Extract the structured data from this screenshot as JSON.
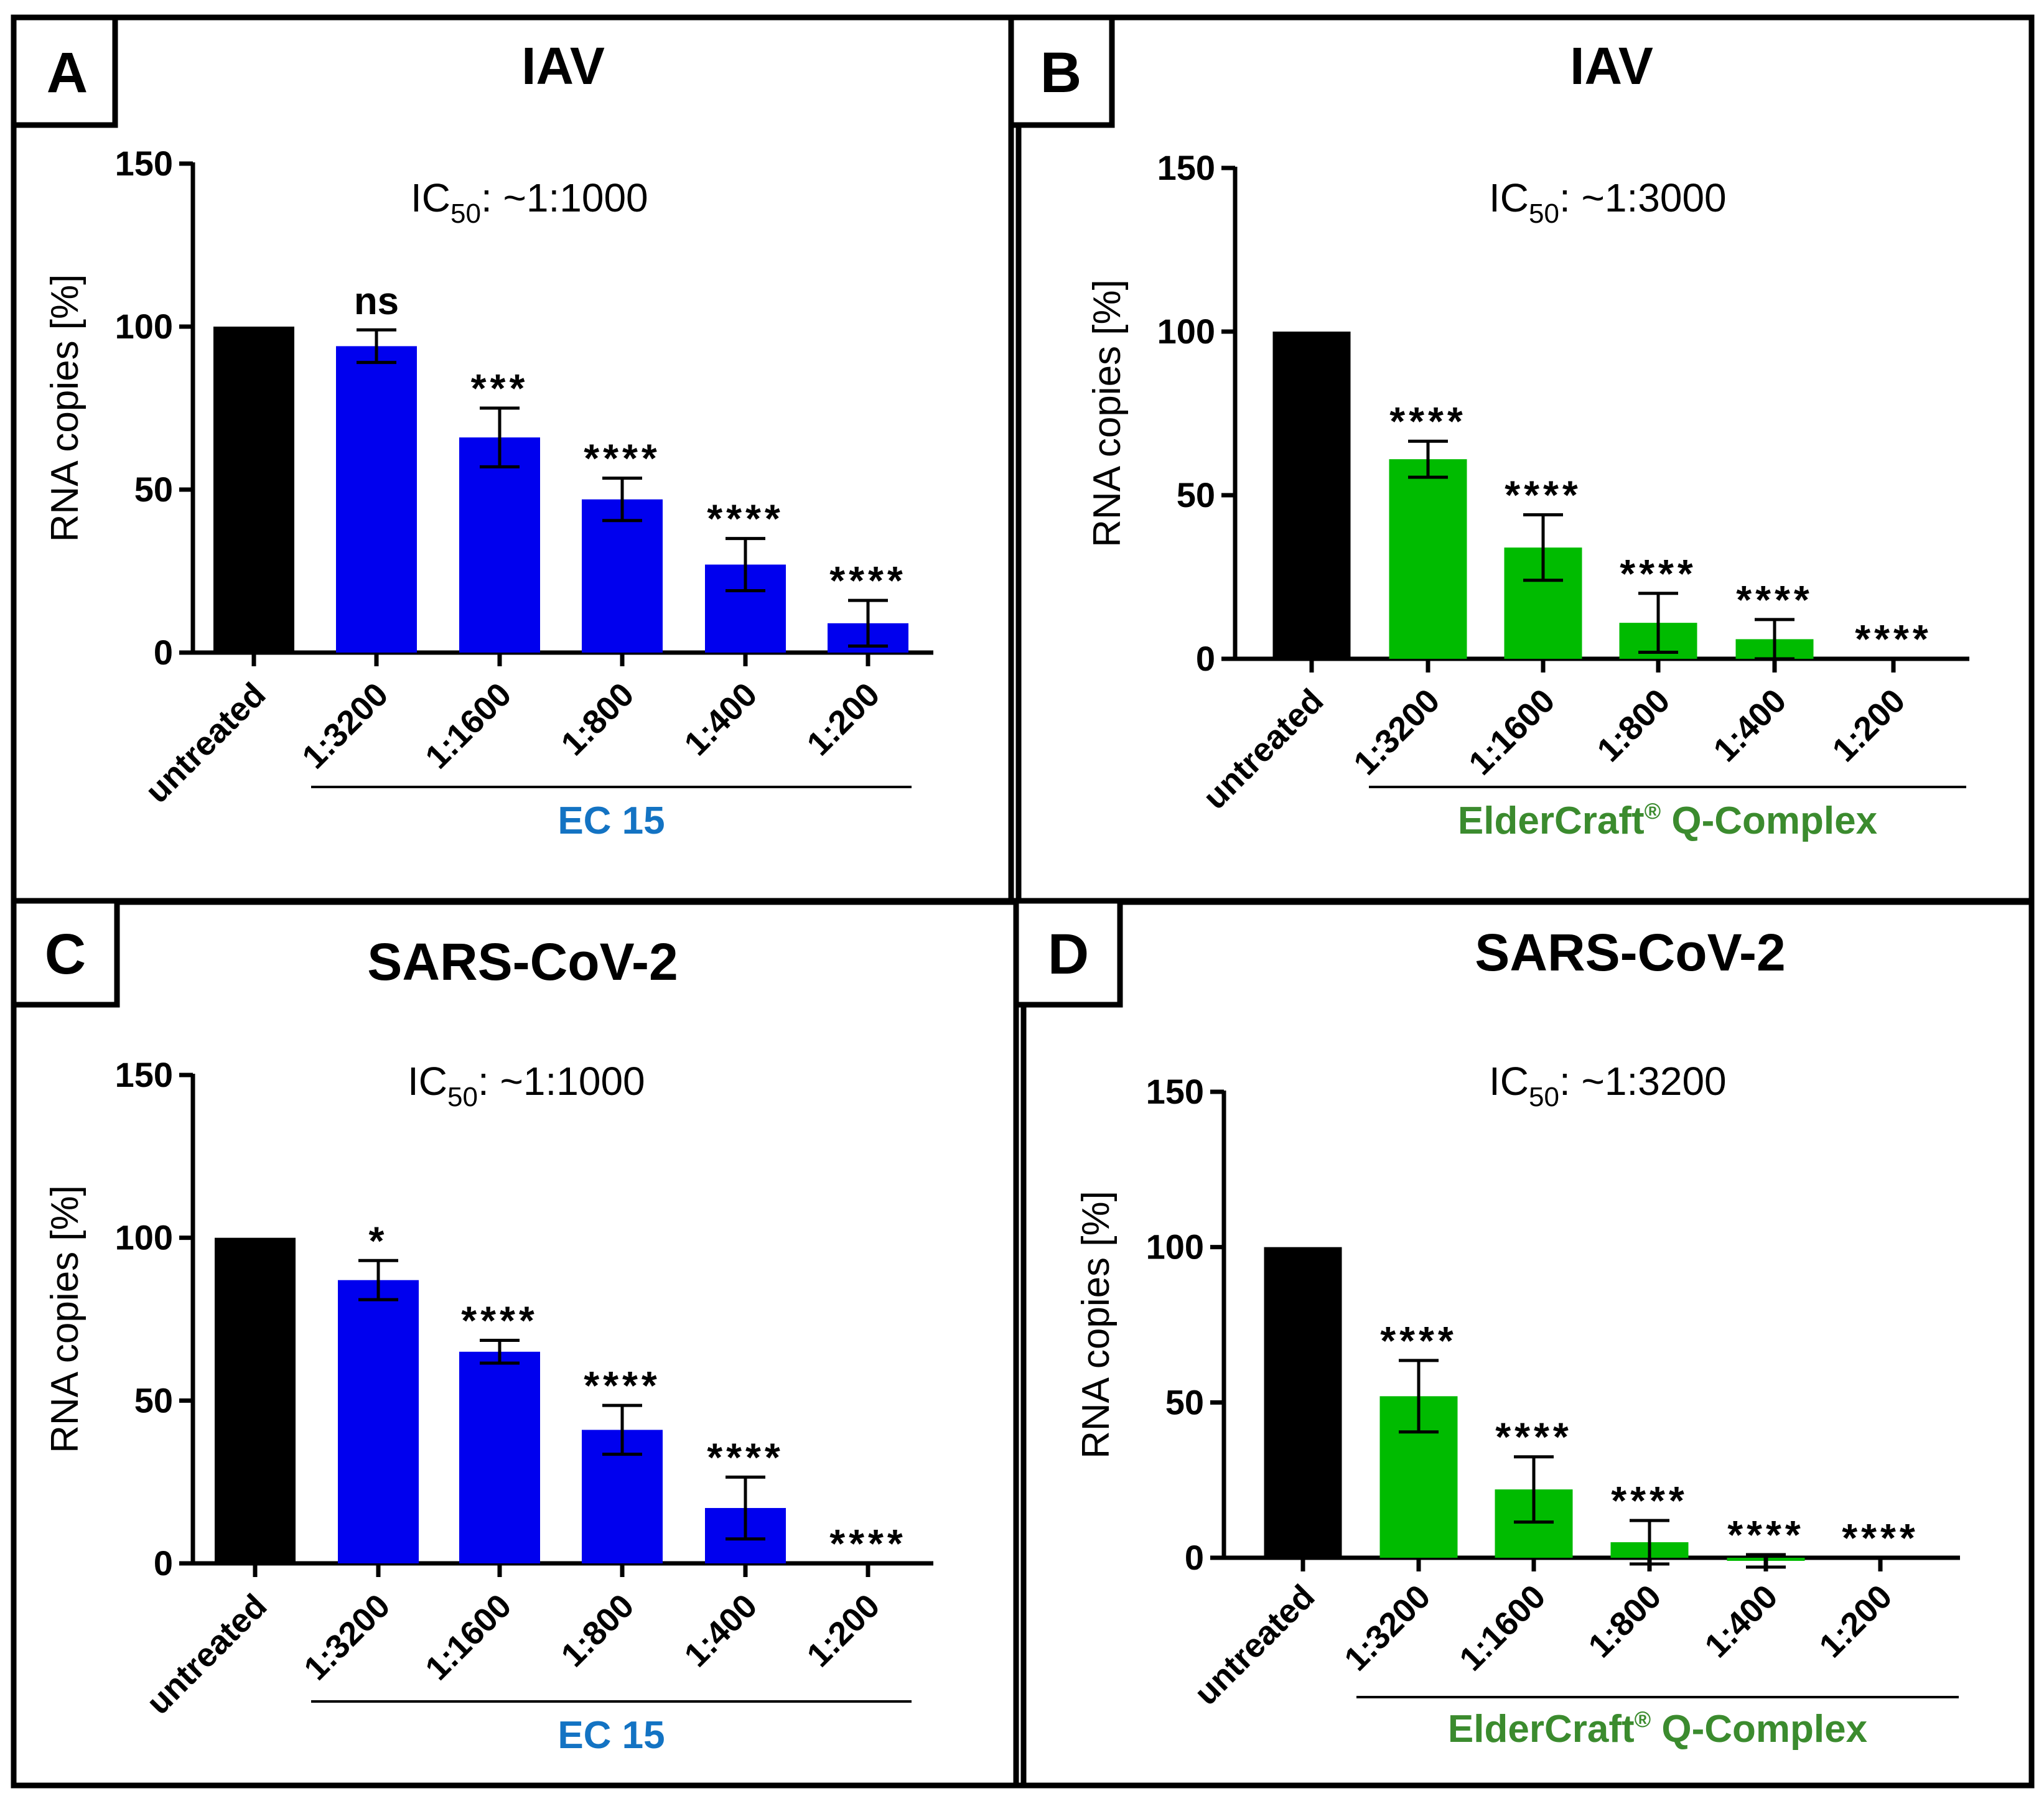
{
  "chart_data": [
    {
      "panel": "A",
      "type": "bar",
      "title": "IAV",
      "ic50_prefix": "IC",
      "ic50_sub": "50",
      "ic50_value": ": ~1:1000",
      "ylabel": "RNA copies [%]",
      "xlabel": "",
      "ylim": [
        0,
        150
      ],
      "yticks": [
        0,
        50,
        100,
        150
      ],
      "categories": [
        "untreated",
        "1:3200",
        "1:1600",
        "1:800",
        "1:400",
        "1:200"
      ],
      "values": [
        100,
        94,
        66,
        47,
        27,
        9
      ],
      "errors": [
        0,
        5,
        9,
        6.5,
        8,
        7
      ],
      "significance": [
        "",
        "ns",
        "***",
        "****",
        "****",
        "****"
      ],
      "group_label": "EC 15",
      "group_label_color": "#1373c3",
      "bar_colors": [
        "#000000",
        "#0000ee",
        "#0000ee",
        "#0000ee",
        "#0000ee",
        "#0000ee"
      ]
    },
    {
      "panel": "B",
      "type": "bar",
      "title": "IAV",
      "ic50_prefix": "IC",
      "ic50_sub": "50",
      "ic50_value": ": ~1:3000",
      "ylabel": "RNA copies [%]",
      "xlabel": "",
      "ylim": [
        0,
        150
      ],
      "yticks": [
        0,
        50,
        100,
        150
      ],
      "categories": [
        "untreated",
        "1:3200",
        "1:1600",
        "1:800",
        "1:400",
        "1:200"
      ],
      "values": [
        100,
        61,
        34,
        11,
        6,
        0
      ],
      "errors": [
        0,
        5.5,
        10,
        9,
        6,
        0
      ],
      "significance": [
        "",
        "****",
        "****",
        "****",
        "****",
        "****"
      ],
      "group_label": "ElderCraft",
      "group_label_sup": "®",
      "group_label_suffix": " Q-Complex",
      "group_label_color": "#3b8b2e",
      "bar_colors": [
        "#000000",
        "#00bb00",
        "#00bb00",
        "#00bb00",
        "#00bb00",
        "#00bb00"
      ]
    },
    {
      "panel": "C",
      "type": "bar",
      "title": "SARS-CoV-2",
      "ic50_prefix": "IC",
      "ic50_sub": "50",
      "ic50_value": ": ~1:1000",
      "ylabel": "RNA copies [%]",
      "xlabel": "",
      "ylim": [
        0,
        150
      ],
      "yticks": [
        0,
        50,
        100,
        150
      ],
      "categories": [
        "untreated",
        "1:3200",
        "1:1600",
        "1:800",
        "1:400",
        "1:200"
      ],
      "values": [
        100,
        87,
        65,
        41,
        17,
        0
      ],
      "errors": [
        0,
        6,
        3.5,
        7.5,
        9.5,
        0
      ],
      "significance": [
        "",
        "*",
        "****",
        "****",
        "****",
        "****"
      ],
      "group_label": "EC 15",
      "group_label_color": "#1373c3",
      "bar_colors": [
        "#000000",
        "#0000ee",
        "#0000ee",
        "#0000ee",
        "#0000ee",
        "#0000ee"
      ]
    },
    {
      "panel": "D",
      "type": "bar",
      "title": "SARS-CoV-2",
      "ic50_prefix": "IC",
      "ic50_sub": "50",
      "ic50_value": ": ~1:3200",
      "ylabel": "RNA copies [%]",
      "xlabel": "",
      "ylim": [
        0,
        150
      ],
      "yticks": [
        0,
        50,
        100,
        150
      ],
      "categories": [
        "untreated",
        "1:3200",
        "1:1600",
        "1:800",
        "1:400",
        "1:200"
      ],
      "values": [
        100,
        52,
        22,
        5,
        -1,
        0
      ],
      "errors": [
        0,
        11.5,
        10.5,
        7,
        2,
        0
      ],
      "significance": [
        "",
        "****",
        "****",
        "****",
        "****",
        "****"
      ],
      "group_label": "ElderCraft",
      "group_label_sup": "®",
      "group_label_suffix": " Q-Complex",
      "group_label_color": "#3b8b2e",
      "bar_colors": [
        "#000000",
        "#00bb00",
        "#00bb00",
        "#00bb00",
        "#00bb00",
        "#00bb00"
      ]
    }
  ]
}
